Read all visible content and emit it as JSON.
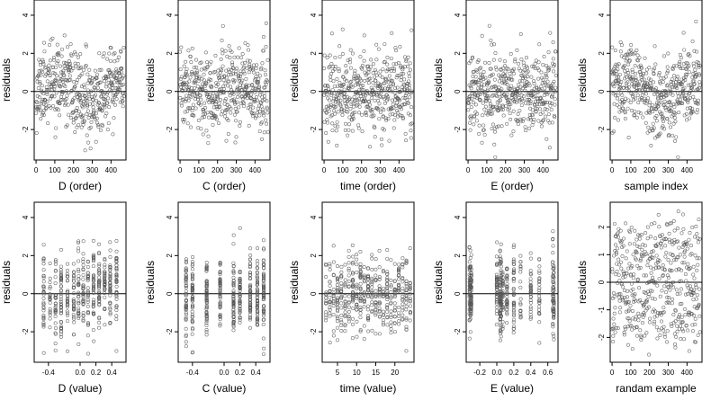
{
  "figure": {
    "background": "#ffffff",
    "point_color": "#555555",
    "axis_color": "#000000"
  },
  "chart_data": [
    {
      "type": "scatter",
      "xlabel": "D (order)",
      "ylabel": "residuals",
      "xlim": [
        -10,
        480
      ],
      "ylim": [
        -3.6,
        4.8
      ],
      "xticks": [
        0,
        100,
        200,
        300,
        400
      ],
      "xtick_labels": [
        "0",
        "100",
        "200",
        "300",
        "400"
      ],
      "yticks": [
        -2,
        0,
        2,
        4
      ],
      "ytick_labels": [
        "-2",
        "0",
        "2",
        "4"
      ],
      "reference_line": 0,
      "n": 470,
      "x_kind": "index",
      "y_mode": "wave",
      "x_values": [],
      "point_seed": 11
    },
    {
      "type": "scatter",
      "xlabel": "C (order)",
      "ylabel": "residuals",
      "xlim": [
        -10,
        480
      ],
      "ylim": [
        -3.6,
        4.8
      ],
      "xticks": [
        0,
        100,
        200,
        300,
        400
      ],
      "xtick_labels": [
        "0",
        "100",
        "200",
        "300",
        "400"
      ],
      "yticks": [
        -2,
        0,
        2,
        4
      ],
      "ytick_labels": [
        "-2",
        "0",
        "2",
        "4"
      ],
      "reference_line": 0,
      "n": 470,
      "x_kind": "index",
      "y_mode": "normal",
      "x_values": [],
      "point_seed": 23
    },
    {
      "type": "scatter",
      "xlabel": "time (order)",
      "ylabel": "residuals",
      "xlim": [
        -10,
        480
      ],
      "ylim": [
        -3.6,
        4.8
      ],
      "xticks": [
        0,
        100,
        200,
        300,
        400
      ],
      "xtick_labels": [
        "0",
        "100",
        "200",
        "300",
        "400"
      ],
      "yticks": [
        -2,
        0,
        2,
        4
      ],
      "ytick_labels": [
        "-2",
        "0",
        "2",
        "4"
      ],
      "reference_line": 0,
      "n": 470,
      "x_kind": "index",
      "y_mode": "normal",
      "x_values": [],
      "point_seed": 37
    },
    {
      "type": "scatter",
      "xlabel": "E (order)",
      "ylabel": "residuals",
      "xlim": [
        -10,
        480
      ],
      "ylim": [
        -3.6,
        4.8
      ],
      "xticks": [
        0,
        100,
        200,
        300,
        400
      ],
      "xtick_labels": [
        "0",
        "100",
        "200",
        "300",
        "400"
      ],
      "yticks": [
        -2,
        0,
        2,
        4
      ],
      "ytick_labels": [
        "-2",
        "0",
        "2",
        "4"
      ],
      "reference_line": 0,
      "n": 470,
      "x_kind": "index",
      "y_mode": "normal",
      "x_values": [],
      "point_seed": 41
    },
    {
      "type": "scatter",
      "xlabel": "sample index",
      "ylabel": "residuals",
      "xlim": [
        -10,
        480
      ],
      "ylim": [
        -3.6,
        4.8
      ],
      "xticks": [
        0,
        100,
        200,
        300,
        400
      ],
      "xtick_labels": [
        "0",
        "100",
        "200",
        "300",
        "400"
      ],
      "yticks": [
        -2,
        0,
        2,
        4
      ],
      "ytick_labels": [
        "-2",
        "0",
        "2",
        "4"
      ],
      "reference_line": 0,
      "n": 470,
      "x_kind": "index",
      "y_mode": "wave",
      "x_values": [],
      "point_seed": 53
    },
    {
      "type": "scatter",
      "xlabel": "D (value)",
      "ylabel": "residuals",
      "xlim": [
        -0.58,
        0.58
      ],
      "ylim": [
        -3.6,
        4.8
      ],
      "xticks": [
        -0.4,
        0.0,
        0.2,
        0.4
      ],
      "xtick_labels": [
        "-0.4",
        "0.0",
        "0.2",
        "0.4"
      ],
      "yticks": [
        -2,
        0,
        2,
        4
      ],
      "ytick_labels": [
        "-2",
        "0",
        "2",
        "4"
      ],
      "reference_line": 0,
      "n": 470,
      "x_kind": "discrete",
      "y_mode": "slope",
      "x_values": [
        -0.46,
        -0.38,
        -0.31,
        -0.24,
        -0.16,
        -0.08,
        -0.02,
        0.04,
        0.1,
        0.17,
        0.24,
        0.31,
        0.38,
        0.46
      ],
      "point_seed": 61
    },
    {
      "type": "scatter",
      "xlabel": "C (value)",
      "ylabel": "residuals",
      "xlim": [
        -0.58,
        0.58
      ],
      "ylim": [
        -3.6,
        4.8
      ],
      "xticks": [
        -0.4,
        0.0,
        0.2,
        0.4
      ],
      "xtick_labels": [
        "-0.4",
        "0.0",
        "0.2",
        "0.4"
      ],
      "yticks": [
        -2,
        0,
        2,
        4
      ],
      "ytick_labels": [
        "-2",
        "0",
        "2",
        "4"
      ],
      "reference_line": 0,
      "n": 470,
      "x_kind": "discrete",
      "y_mode": "normal",
      "x_values": [
        -0.48,
        -0.4,
        -0.22,
        -0.05,
        0.12,
        0.2,
        0.33,
        0.42,
        0.5
      ],
      "point_seed": 71
    },
    {
      "type": "scatter",
      "xlabel": "time (value)",
      "ylabel": "residuals",
      "xlim": [
        1,
        25
      ],
      "ylim": [
        -3.6,
        4.8
      ],
      "xticks": [
        5,
        10,
        15,
        20
      ],
      "xtick_labels": [
        "5",
        "10",
        "15",
        "20"
      ],
      "yticks": [
        -2,
        0,
        2,
        4
      ],
      "ytick_labels": [
        "-2",
        "0",
        "2",
        "4"
      ],
      "reference_line": 0,
      "n": 470,
      "x_kind": "discrete",
      "y_mode": "normal",
      "x_values": [
        2,
        3,
        4,
        5,
        6,
        7,
        8,
        9,
        10,
        11,
        12,
        13,
        14,
        15,
        16,
        17,
        18,
        19,
        20,
        21,
        22,
        23,
        24
      ],
      "point_seed": 83
    },
    {
      "type": "scatter",
      "xlabel": "E (value)",
      "ylabel": "residuals",
      "xlim": [
        -0.36,
        0.72
      ],
      "ylim": [
        -3.6,
        4.8
      ],
      "xticks": [
        -0.2,
        0.0,
        0.2,
        0.4,
        0.6
      ],
      "xtick_labels": [
        "-0.2",
        "0.0",
        "0.2",
        "0.4",
        "0.6"
      ],
      "yticks": [
        -2,
        0,
        2,
        4
      ],
      "ytick_labels": [
        "-2",
        "0",
        "2",
        "4"
      ],
      "reference_line": 0,
      "n": 470,
      "x_kind": "discrete",
      "y_mode": "normal",
      "x_values": [
        -0.32,
        -0.31,
        -0.3,
        0.0,
        0.04,
        0.05,
        0.07,
        0.12,
        0.2,
        0.28,
        0.4,
        0.5,
        0.66,
        0.67
      ],
      "point_seed": 97
    },
    {
      "type": "scatter",
      "xlabel": "randam example",
      "ylabel": "residuals",
      "xlim": [
        -10,
        480
      ],
      "ylim": [
        -2.9,
        2.9
      ],
      "xticks": [
        0,
        100,
        200,
        300,
        400
      ],
      "xtick_labels": [
        "0",
        "100",
        "200",
        "300",
        "400"
      ],
      "yticks": [
        -2,
        -1,
        0,
        1,
        2
      ],
      "ytick_labels": [
        "-2",
        "-1",
        "0",
        "1",
        "2"
      ],
      "reference_line": 0,
      "n": 470,
      "x_kind": "index",
      "y_mode": "uniform",
      "x_values": [],
      "point_seed": 101
    }
  ]
}
